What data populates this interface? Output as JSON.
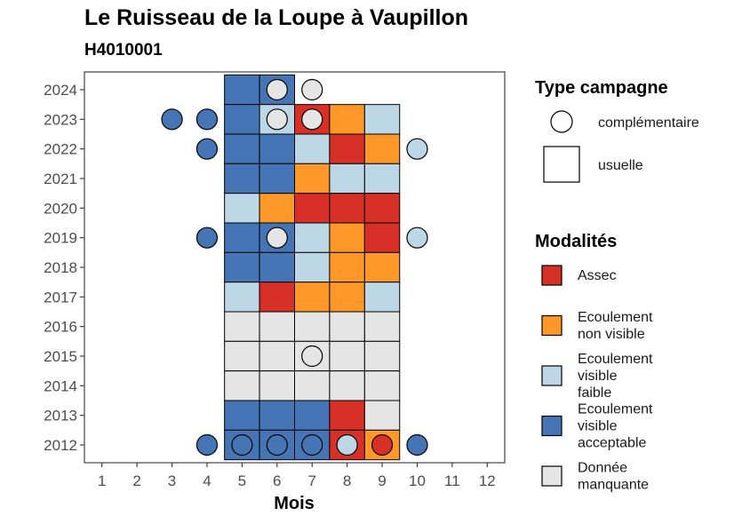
{
  "chart_data": {
    "type": "heatmap",
    "title": "Le Ruisseau de la Loupe à Vaupillon",
    "subtitle": "H4010001",
    "xlabel": "Mois",
    "ylabel": "",
    "x_ticks": [
      1,
      2,
      3,
      4,
      5,
      6,
      7,
      8,
      9,
      10,
      11,
      12
    ],
    "y_ticks": [
      2012,
      2013,
      2014,
      2015,
      2016,
      2017,
      2018,
      2019,
      2020,
      2021,
      2022,
      2023,
      2024
    ],
    "xlim": [
      0.5,
      12.5
    ],
    "ylim": [
      2011.4,
      2024.6
    ],
    "grid": false,
    "legend_placement": "right",
    "legend_shape": {
      "title": "Type campagne",
      "items": [
        {
          "key": "complementaire",
          "label": "complémentaire",
          "shape": "circle"
        },
        {
          "key": "usuelle",
          "label": "usuelle",
          "shape": "square"
        }
      ]
    },
    "legend_modalites": {
      "title": "Modalités",
      "items": [
        {
          "key": "assec",
          "lines": [
            "Assec"
          ],
          "color": "#d73027"
        },
        {
          "key": "ecnv",
          "lines": [
            "Ecoulement",
            "non visible"
          ],
          "color": "#fe9929"
        },
        {
          "key": "ecvf",
          "lines": [
            "Ecoulement",
            "visible",
            "faible"
          ],
          "color": "#bdd7e7"
        },
        {
          "key": "ecva",
          "lines": [
            "Ecoulement",
            "visible",
            "acceptable"
          ],
          "color": "#4575b4"
        },
        {
          "key": "dm",
          "lines": [
            "Donnée",
            "manquante"
          ],
          "color": "#e5e5e5"
        }
      ]
    },
    "usuelle": [
      {
        "year": 2024,
        "month": 5,
        "mod": "ecva"
      },
      {
        "year": 2024,
        "month": 6,
        "mod": "ecva"
      },
      {
        "year": 2023,
        "month": 5,
        "mod": "ecva"
      },
      {
        "year": 2023,
        "month": 6,
        "mod": "ecvf"
      },
      {
        "year": 2023,
        "month": 7,
        "mod": "assec"
      },
      {
        "year": 2023,
        "month": 8,
        "mod": "ecnv"
      },
      {
        "year": 2023,
        "month": 9,
        "mod": "ecvf"
      },
      {
        "year": 2022,
        "month": 5,
        "mod": "ecva"
      },
      {
        "year": 2022,
        "month": 6,
        "mod": "ecva"
      },
      {
        "year": 2022,
        "month": 7,
        "mod": "ecvf"
      },
      {
        "year": 2022,
        "month": 8,
        "mod": "assec"
      },
      {
        "year": 2022,
        "month": 9,
        "mod": "ecnv"
      },
      {
        "year": 2021,
        "month": 5,
        "mod": "ecva"
      },
      {
        "year": 2021,
        "month": 6,
        "mod": "ecva"
      },
      {
        "year": 2021,
        "month": 7,
        "mod": "ecnv"
      },
      {
        "year": 2021,
        "month": 8,
        "mod": "ecvf"
      },
      {
        "year": 2021,
        "month": 9,
        "mod": "ecvf"
      },
      {
        "year": 2020,
        "month": 5,
        "mod": "ecvf"
      },
      {
        "year": 2020,
        "month": 6,
        "mod": "ecnv"
      },
      {
        "year": 2020,
        "month": 7,
        "mod": "assec"
      },
      {
        "year": 2020,
        "month": 8,
        "mod": "assec"
      },
      {
        "year": 2020,
        "month": 9,
        "mod": "assec"
      },
      {
        "year": 2019,
        "month": 5,
        "mod": "ecva"
      },
      {
        "year": 2019,
        "month": 6,
        "mod": "ecva"
      },
      {
        "year": 2019,
        "month": 7,
        "mod": "ecvf"
      },
      {
        "year": 2019,
        "month": 8,
        "mod": "ecnv"
      },
      {
        "year": 2019,
        "month": 9,
        "mod": "assec"
      },
      {
        "year": 2018,
        "month": 5,
        "mod": "ecva"
      },
      {
        "year": 2018,
        "month": 6,
        "mod": "ecva"
      },
      {
        "year": 2018,
        "month": 7,
        "mod": "ecvf"
      },
      {
        "year": 2018,
        "month": 8,
        "mod": "ecnv"
      },
      {
        "year": 2018,
        "month": 9,
        "mod": "ecnv"
      },
      {
        "year": 2017,
        "month": 5,
        "mod": "ecvf"
      },
      {
        "year": 2017,
        "month": 6,
        "mod": "assec"
      },
      {
        "year": 2017,
        "month": 7,
        "mod": "ecnv"
      },
      {
        "year": 2017,
        "month": 8,
        "mod": "ecnv"
      },
      {
        "year": 2017,
        "month": 9,
        "mod": "ecvf"
      },
      {
        "year": 2016,
        "month": 5,
        "mod": "dm"
      },
      {
        "year": 2016,
        "month": 6,
        "mod": "dm"
      },
      {
        "year": 2016,
        "month": 7,
        "mod": "dm"
      },
      {
        "year": 2016,
        "month": 8,
        "mod": "dm"
      },
      {
        "year": 2016,
        "month": 9,
        "mod": "dm"
      },
      {
        "year": 2015,
        "month": 5,
        "mod": "dm"
      },
      {
        "year": 2015,
        "month": 6,
        "mod": "dm"
      },
      {
        "year": 2015,
        "month": 7,
        "mod": "dm"
      },
      {
        "year": 2015,
        "month": 8,
        "mod": "dm"
      },
      {
        "year": 2015,
        "month": 9,
        "mod": "dm"
      },
      {
        "year": 2014,
        "month": 5,
        "mod": "dm"
      },
      {
        "year": 2014,
        "month": 6,
        "mod": "dm"
      },
      {
        "year": 2014,
        "month": 7,
        "mod": "dm"
      },
      {
        "year": 2014,
        "month": 8,
        "mod": "dm"
      },
      {
        "year": 2014,
        "month": 9,
        "mod": "dm"
      },
      {
        "year": 2013,
        "month": 5,
        "mod": "ecva"
      },
      {
        "year": 2013,
        "month": 6,
        "mod": "ecva"
      },
      {
        "year": 2013,
        "month": 7,
        "mod": "ecva"
      },
      {
        "year": 2013,
        "month": 8,
        "mod": "assec"
      },
      {
        "year": 2013,
        "month": 9,
        "mod": "dm"
      },
      {
        "year": 2012,
        "month": 5,
        "mod": "ecva"
      },
      {
        "year": 2012,
        "month": 6,
        "mod": "ecva"
      },
      {
        "year": 2012,
        "month": 7,
        "mod": "ecva"
      },
      {
        "year": 2012,
        "month": 8,
        "mod": "assec"
      },
      {
        "year": 2012,
        "month": 9,
        "mod": "ecnv"
      }
    ],
    "complementaire": [
      {
        "year": 2024,
        "month": 6,
        "mod": "dm"
      },
      {
        "year": 2024,
        "month": 7,
        "mod": "dm"
      },
      {
        "year": 2023,
        "month": 3,
        "mod": "ecva"
      },
      {
        "year": 2023,
        "month": 4,
        "mod": "ecva"
      },
      {
        "year": 2023,
        "month": 6,
        "mod": "dm"
      },
      {
        "year": 2023,
        "month": 7,
        "mod": "dm"
      },
      {
        "year": 2022,
        "month": 4,
        "mod": "ecva"
      },
      {
        "year": 2022,
        "month": 10,
        "mod": "ecvf"
      },
      {
        "year": 2019,
        "month": 4,
        "mod": "ecva"
      },
      {
        "year": 2019,
        "month": 6,
        "mod": "dm"
      },
      {
        "year": 2019,
        "month": 10,
        "mod": "ecvf"
      },
      {
        "year": 2015,
        "month": 7,
        "mod": "dm"
      },
      {
        "year": 2012,
        "month": 4,
        "mod": "ecva"
      },
      {
        "year": 2012,
        "month": 5,
        "mod": "ecva"
      },
      {
        "year": 2012,
        "month": 6,
        "mod": "ecva"
      },
      {
        "year": 2012,
        "month": 7,
        "mod": "ecva"
      },
      {
        "year": 2012,
        "month": 8,
        "mod": "ecvf"
      },
      {
        "year": 2012,
        "month": 9,
        "mod": "assec"
      },
      {
        "year": 2012,
        "month": 10,
        "mod": "ecva"
      }
    ]
  }
}
